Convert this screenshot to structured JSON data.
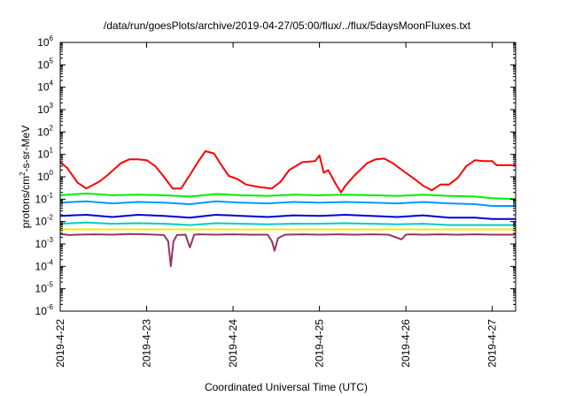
{
  "chart_data": {
    "type": "line",
    "title": "/data/run/goesPlots/archive/2019-04-27/05:00/flux/../flux/5daysMoonFluxes.txt",
    "xlabel": "Coordinated Universal Time (UTC)",
    "ylabel": {
      "prefix": "protons/cm",
      "sup": "2",
      "suffix": "-s-sr-MeV"
    },
    "y_scale": "log",
    "ylim": [
      1e-06,
      1000000.0
    ],
    "y_ticks": [
      {
        "exp": "-6",
        "value": 1e-06
      },
      {
        "exp": "-5",
        "value": 1e-05
      },
      {
        "exp": "-4",
        "value": 0.0001
      },
      {
        "exp": "-3",
        "value": 0.001
      },
      {
        "exp": "-2",
        "value": 0.01
      },
      {
        "exp": "-1",
        "value": 0.1
      },
      {
        "exp": "0",
        "value": 1
      },
      {
        "exp": "1",
        "value": 10
      },
      {
        "exp": "2",
        "value": 100
      },
      {
        "exp": "3",
        "value": 1000
      },
      {
        "exp": "4",
        "value": 10000
      },
      {
        "exp": "5",
        "value": 100000
      },
      {
        "exp": "6",
        "value": 1000000
      }
    ],
    "x_unit": "days since 2019-04-22 00:00 UTC",
    "xlim": [
      0,
      5.27
    ],
    "x_ticks": [
      {
        "label": "2019-4-22",
        "value": 0
      },
      {
        "label": "2019-4-23",
        "value": 1
      },
      {
        "label": "2019-4-24",
        "value": 2
      },
      {
        "label": "2019-4-25",
        "value": 3
      },
      {
        "label": "2019-4-26",
        "value": 4
      },
      {
        "label": "2019-4-27",
        "value": 5
      }
    ],
    "grid": false,
    "legend": "none",
    "series": [
      {
        "color": "#ff0000",
        "x": [
          0,
          0.08,
          0.2,
          0.3,
          0.45,
          0.55,
          0.7,
          0.8,
          0.9,
          1.0,
          1.1,
          1.2,
          1.3,
          1.4,
          1.5,
          1.6,
          1.68,
          1.78,
          1.85,
          1.95,
          2.05,
          2.15,
          2.3,
          2.45,
          2.55,
          2.65,
          2.8,
          2.95,
          3.0,
          3.05,
          3.1,
          3.2,
          3.25,
          3.3,
          3.4,
          3.55,
          3.65,
          3.75,
          3.85,
          4.0,
          4.1,
          4.2,
          4.3,
          4.4,
          4.5,
          4.6,
          4.7,
          4.8,
          4.9,
          5.0,
          5.05,
          5.27
        ],
        "y": [
          4.5,
          2.5,
          0.55,
          0.3,
          0.6,
          1.2,
          4,
          6,
          6,
          5.5,
          3,
          1,
          0.3,
          0.3,
          1.2,
          5,
          14,
          11,
          4,
          1.1,
          0.8,
          0.45,
          0.35,
          0.3,
          0.6,
          2,
          4.5,
          5,
          9,
          1.5,
          2,
          0.4,
          0.2,
          0.4,
          1.1,
          4,
          6,
          6.5,
          4,
          1.5,
          0.8,
          0.4,
          0.25,
          0.45,
          0.45,
          0.9,
          3,
          5.5,
          5,
          5,
          3.3,
          3.3
        ]
      },
      {
        "color": "#00ee00",
        "x": [
          0,
          0.3,
          0.6,
          0.9,
          1.2,
          1.5,
          1.8,
          2.1,
          2.4,
          2.7,
          3.0,
          3.3,
          3.6,
          3.9,
          4.2,
          4.5,
          4.8,
          5.0,
          5.27
        ],
        "y": [
          0.15,
          0.18,
          0.15,
          0.16,
          0.15,
          0.13,
          0.17,
          0.15,
          0.14,
          0.16,
          0.15,
          0.16,
          0.15,
          0.14,
          0.16,
          0.14,
          0.13,
          0.11,
          0.1
        ]
      },
      {
        "color": "#0099ff",
        "x": [
          0,
          0.3,
          0.6,
          0.9,
          1.2,
          1.5,
          1.8,
          2.1,
          2.4,
          2.7,
          3.0,
          3.3,
          3.6,
          3.9,
          4.2,
          4.5,
          4.8,
          5.0,
          5.27
        ],
        "y": [
          0.07,
          0.08,
          0.065,
          0.075,
          0.07,
          0.06,
          0.08,
          0.07,
          0.065,
          0.075,
          0.07,
          0.075,
          0.07,
          0.065,
          0.075,
          0.065,
          0.06,
          0.05,
          0.05
        ]
      },
      {
        "color": "#0000dd",
        "x": [
          0,
          0.3,
          0.6,
          0.9,
          1.2,
          1.5,
          1.8,
          2.1,
          2.4,
          2.7,
          3.0,
          3.3,
          3.6,
          3.9,
          4.2,
          4.5,
          4.8,
          5.0,
          5.27
        ],
        "y": [
          0.018,
          0.02,
          0.016,
          0.02,
          0.018,
          0.015,
          0.02,
          0.018,
          0.016,
          0.019,
          0.018,
          0.02,
          0.018,
          0.016,
          0.019,
          0.015,
          0.015,
          0.013,
          0.013
        ]
      },
      {
        "color": "#00cccc",
        "x": [
          0,
          0.3,
          0.6,
          0.9,
          1.2,
          1.5,
          1.8,
          2.1,
          2.4,
          2.7,
          3.0,
          3.3,
          3.6,
          3.9,
          4.2,
          4.5,
          4.8,
          5.0,
          5.27
        ],
        "y": [
          0.008,
          0.009,
          0.008,
          0.0085,
          0.008,
          0.007,
          0.0085,
          0.008,
          0.0075,
          0.008,
          0.008,
          0.0085,
          0.008,
          0.0075,
          0.008,
          0.007,
          0.007,
          0.007,
          0.007
        ]
      },
      {
        "color": "#eeee00",
        "x": [
          0,
          0.3,
          0.6,
          0.9,
          1.2,
          1.5,
          1.8,
          2.1,
          2.4,
          2.7,
          3.0,
          3.3,
          3.6,
          3.9,
          4.2,
          4.5,
          4.8,
          5.0,
          5.27
        ],
        "y": [
          0.0045,
          0.0045,
          0.0045,
          0.0045,
          0.0045,
          0.0045,
          0.0045,
          0.0045,
          0.0045,
          0.0045,
          0.0045,
          0.0045,
          0.0045,
          0.0045,
          0.0045,
          0.0045,
          0.0045,
          0.0045,
          0.0045
        ]
      },
      {
        "color": "#993366",
        "x": [
          0,
          0.1,
          0.2,
          0.4,
          0.6,
          0.8,
          1.0,
          1.1,
          1.2,
          1.25,
          1.28,
          1.31,
          1.35,
          1.45,
          1.5,
          1.55,
          1.6,
          1.8,
          2.0,
          2.2,
          2.4,
          2.45,
          2.48,
          2.52,
          2.6,
          2.8,
          3.0,
          3.2,
          3.4,
          3.6,
          3.8,
          3.95,
          4.0,
          4.05,
          4.2,
          4.4,
          4.6,
          4.8,
          5.0,
          5.27
        ],
        "y": [
          0.0028,
          0.0025,
          0.0026,
          0.0027,
          0.0026,
          0.0028,
          0.0027,
          0.0026,
          0.0025,
          0.0013,
          0.0001,
          0.0013,
          0.0025,
          0.0026,
          0.0007,
          0.0026,
          0.0027,
          0.0026,
          0.0027,
          0.0026,
          0.0026,
          0.0013,
          0.0005,
          0.0018,
          0.0026,
          0.0027,
          0.0026,
          0.0027,
          0.0026,
          0.0027,
          0.0026,
          0.0016,
          0.0026,
          0.0027,
          0.0026,
          0.0027,
          0.0026,
          0.0027,
          0.0026,
          0.0026
        ]
      }
    ]
  }
}
